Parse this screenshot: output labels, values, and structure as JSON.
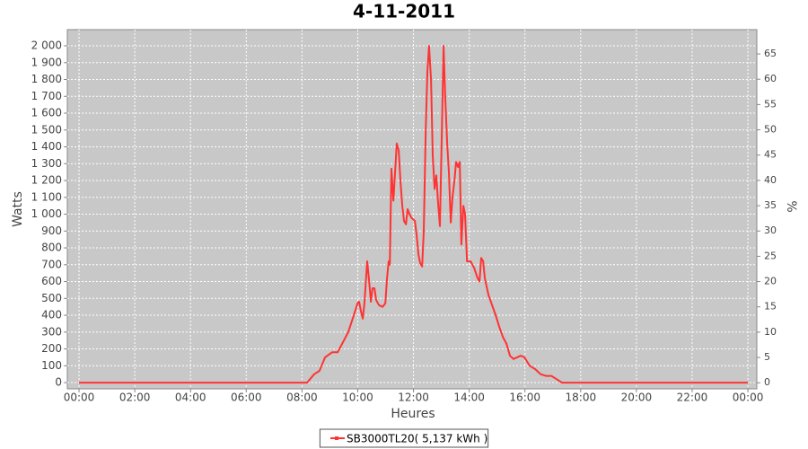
{
  "chart_data": {
    "type": "line",
    "title": "4-11-2011",
    "x_label": "Heures",
    "y_label": "Watts",
    "y2_label": "%",
    "x": [
      0,
      8.18,
      8.44,
      8.63,
      8.83,
      9.08,
      9.28,
      9.47,
      9.66,
      9.86,
      9.99,
      10.05,
      10.12,
      10.18,
      10.24,
      10.34,
      10.41,
      10.47,
      10.53,
      10.6,
      10.66,
      10.76,
      10.89,
      10.99,
      11.05,
      11.11,
      11.15,
      11.21,
      11.28,
      11.34,
      11.4,
      11.47,
      11.53,
      11.6,
      11.66,
      11.73,
      11.79,
      11.86,
      11.92,
      12.05,
      12.11,
      12.18,
      12.24,
      12.31,
      12.37,
      12.44,
      12.5,
      12.56,
      12.63,
      12.69,
      12.76,
      12.82,
      12.89,
      12.95,
      13.02,
      13.08,
      13.14,
      13.21,
      13.27,
      13.34,
      13.4,
      13.47,
      13.53,
      13.6,
      13.66,
      13.72,
      13.79,
      13.85,
      13.92,
      14.05,
      14.18,
      14.3,
      14.37,
      14.43,
      14.5,
      14.56,
      14.69,
      14.82,
      14.95,
      15.08,
      15.21,
      15.34,
      15.46,
      15.59,
      15.72,
      15.85,
      15.98,
      16.17,
      16.37,
      16.56,
      16.75,
      16.95,
      17.14,
      17.33,
      24
    ],
    "series": [
      {
        "name": "SB3000TL20( 5,137 kWh )",
        "color": "#ff3333",
        "values": [
          0,
          0,
          50,
          70,
          150,
          180,
          180,
          240,
          300,
          400,
          470,
          480,
          420,
          380,
          470,
          720,
          600,
          480,
          560,
          560,
          490,
          460,
          450,
          470,
          620,
          720,
          700,
          1270,
          1080,
          1250,
          1420,
          1380,
          1200,
          1050,
          960,
          940,
          1030,
          1000,
          980,
          960,
          880,
          760,
          710,
          690,
          900,
          1500,
          1850,
          2000,
          1800,
          1350,
          1150,
          1230,
          1050,
          930,
          1500,
          2000,
          1700,
          1420,
          1250,
          950,
          1100,
          1200,
          1310,
          1280,
          1310,
          820,
          1050,
          1000,
          720,
          720,
          680,
          620,
          600,
          740,
          720,
          620,
          520,
          460,
          400,
          330,
          270,
          230,
          160,
          140,
          150,
          160,
          150,
          100,
          80,
          50,
          40,
          40,
          20,
          0,
          0
        ]
      }
    ],
    "xlim": [
      -0.42,
      24.32
    ],
    "xticks": [
      {
        "value": 0,
        "label": "00:00"
      },
      {
        "value": 2,
        "label": "02:00"
      },
      {
        "value": 4,
        "label": "04:00"
      },
      {
        "value": 6,
        "label": "06:00"
      },
      {
        "value": 8,
        "label": "08:00"
      },
      {
        "value": 10,
        "label": "10:00"
      },
      {
        "value": 12,
        "label": "12:00"
      },
      {
        "value": 14,
        "label": "14:00"
      },
      {
        "value": 16,
        "label": "16:00"
      },
      {
        "value": 18,
        "label": "18:00"
      },
      {
        "value": 20,
        "label": "20:00"
      },
      {
        "value": 22,
        "label": "22:00"
      },
      {
        "value": 24,
        "label": "00:00"
      }
    ],
    "ylim": [
      -37,
      2096
    ],
    "yticks": [
      0,
      100,
      200,
      300,
      400,
      500,
      600,
      700,
      800,
      900,
      {
        "value": 1000,
        "label": "1 000"
      },
      {
        "value": 1100,
        "label": "1 100"
      },
      {
        "value": 1200,
        "label": "1 200"
      },
      {
        "value": 1300,
        "label": "1 300"
      },
      {
        "value": 1400,
        "label": "1 400"
      },
      {
        "value": 1500,
        "label": "1 500"
      },
      {
        "value": 1600,
        "label": "1 600"
      },
      {
        "value": 1700,
        "label": "1 700"
      },
      {
        "value": 1800,
        "label": "1 800"
      },
      {
        "value": 1900,
        "label": "1 900"
      },
      {
        "value": 2000,
        "label": "2 000"
      }
    ],
    "y2lim": [
      -1.2,
      69.8
    ],
    "y2ticks": [
      0,
      5,
      10,
      15,
      20,
      25,
      30,
      35,
      40,
      45,
      50,
      55,
      60,
      65
    ],
    "grid": true,
    "legend": "bottom",
    "background": "#c8c8c8"
  }
}
